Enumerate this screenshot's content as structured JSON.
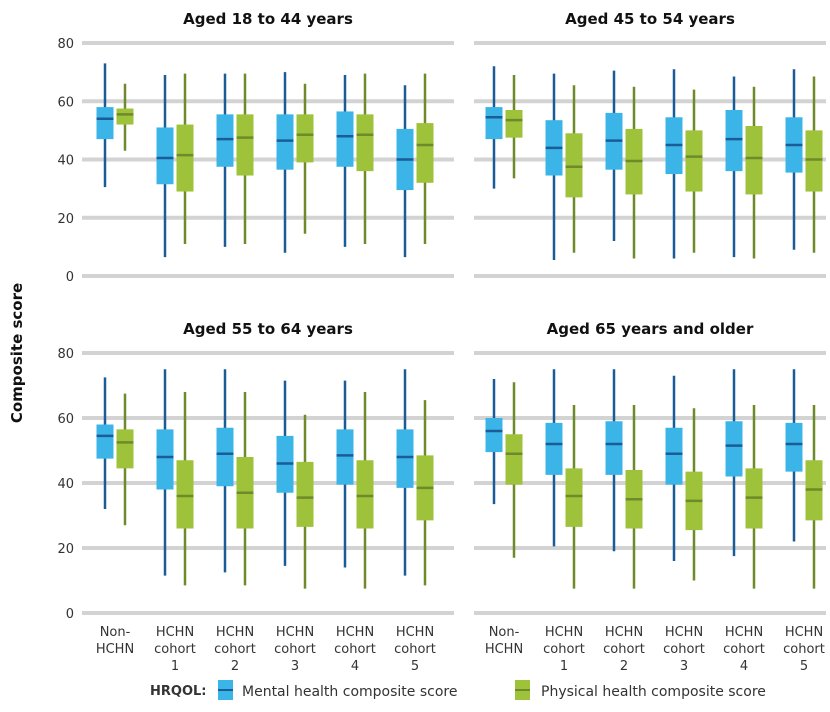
{
  "chart_data": {
    "type": "boxplot",
    "ylabel": "Composite score",
    "ylim": [
      0,
      80
    ],
    "yticks": [
      0,
      20,
      40,
      60,
      80
    ],
    "categories": [
      [
        "Non-",
        "HCHN"
      ],
      [
        "HCHN",
        "cohort",
        "1"
      ],
      [
        "HCHN",
        "cohort",
        "2"
      ],
      [
        "HCHN",
        "cohort",
        "3"
      ],
      [
        "HCHN",
        "cohort",
        "4"
      ],
      [
        "HCHN",
        "cohort",
        "5"
      ]
    ],
    "legend": {
      "title": "HRQOL:",
      "items": [
        "Mental health composite score",
        "Physical health composite score"
      ]
    },
    "colors": {
      "mental_box": "#3bb5e8",
      "mental_whisker": "#1a5c96",
      "physical_box": "#9fc23b",
      "physical_whisker": "#6e8a2a",
      "grid": "#d3d3d3"
    },
    "panels": [
      {
        "title": "Aged 18 to 44 years",
        "mental": [
          [
            30.5,
            47,
            54,
            58,
            73
          ],
          [
            6.5,
            31.5,
            40.5,
            51,
            69
          ],
          [
            10,
            37.5,
            47,
            55.5,
            69.5
          ],
          [
            8,
            36.5,
            46.5,
            55.5,
            70
          ],
          [
            10,
            37.5,
            48,
            56.5,
            69
          ],
          [
            6.5,
            29.5,
            40,
            50.5,
            65.5
          ]
        ],
        "physical": [
          [
            43,
            52,
            55.5,
            57.5,
            66
          ],
          [
            11,
            29,
            41.5,
            52,
            69.5
          ],
          [
            11,
            34.5,
            47.5,
            55.5,
            69.5
          ],
          [
            14.5,
            39,
            48.5,
            55.5,
            66
          ],
          [
            11,
            36,
            48.5,
            55.5,
            69.5
          ],
          [
            11,
            32,
            45,
            52.5,
            69.5
          ]
        ]
      },
      {
        "title": "Aged 45 to 54 years",
        "mental": [
          [
            30,
            47,
            54.5,
            58,
            72
          ],
          [
            5.5,
            34.5,
            44,
            53.5,
            69.5
          ],
          [
            12,
            36.5,
            46.5,
            56,
            70.5
          ],
          [
            6,
            35,
            45,
            54.5,
            71
          ],
          [
            6.5,
            36,
            47,
            57,
            68.5
          ],
          [
            9,
            35.5,
            45,
            54.5,
            71
          ]
        ],
        "physical": [
          [
            33.5,
            47.5,
            53.5,
            57,
            69
          ],
          [
            8,
            27,
            37.5,
            49,
            65.5
          ],
          [
            6,
            28,
            39.5,
            50.5,
            65
          ],
          [
            8,
            29,
            41,
            50,
            64
          ],
          [
            6,
            28,
            40.5,
            51.5,
            65
          ],
          [
            8,
            29,
            40,
            50,
            68.5
          ]
        ]
      },
      {
        "title": "Aged 55 to 64 years",
        "mental": [
          [
            32,
            47.5,
            54.5,
            58,
            72.5
          ],
          [
            11.5,
            38,
            48,
            56.5,
            75
          ],
          [
            12.5,
            39,
            49,
            57,
            75
          ],
          [
            14.5,
            37,
            46,
            54.5,
            71.5
          ],
          [
            14,
            39.5,
            48.5,
            56.5,
            71.5
          ],
          [
            11.5,
            38.5,
            48,
            56.5,
            75
          ]
        ],
        "physical": [
          [
            27,
            44.5,
            52.5,
            56.5,
            67.5
          ],
          [
            8.5,
            26,
            36,
            47,
            68
          ],
          [
            8.5,
            26,
            37,
            48,
            68
          ],
          [
            7.5,
            26.5,
            35.5,
            46.5,
            61
          ],
          [
            7.5,
            26,
            36,
            47,
            68
          ],
          [
            8.5,
            28.5,
            38.5,
            48.5,
            65.5
          ]
        ]
      },
      {
        "title": "Aged 65 years and older",
        "mental": [
          [
            33.5,
            49.5,
            56,
            60,
            72
          ],
          [
            20.5,
            42.5,
            52,
            58.5,
            75
          ],
          [
            19,
            42.5,
            52,
            59,
            75
          ],
          [
            16,
            39.5,
            49,
            57,
            73
          ],
          [
            17.5,
            42,
            51.5,
            59,
            75
          ],
          [
            22,
            43.5,
            52,
            58.5,
            75
          ]
        ],
        "physical": [
          [
            17,
            39.5,
            49,
            55,
            71
          ],
          [
            7.5,
            26.5,
            36,
            44.5,
            64
          ],
          [
            7.5,
            26,
            35,
            44,
            64
          ],
          [
            10,
            25.5,
            34.5,
            43.5,
            63
          ],
          [
            7.5,
            26,
            35.5,
            44.5,
            64
          ],
          [
            7.5,
            28.5,
            38,
            47,
            64
          ]
        ]
      }
    ]
  }
}
